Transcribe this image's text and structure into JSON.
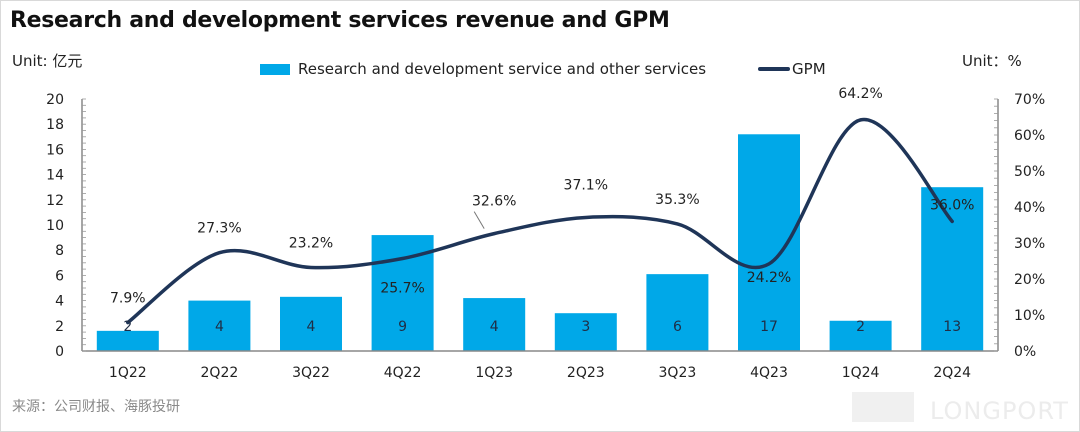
{
  "title": "Research and development services revenue and GPM",
  "unit_left": "Unit: 亿元",
  "unit_right": "Unit：%",
  "legend": {
    "bar": "Research and development service and other services",
    "line": "GPM"
  },
  "source": "来源：公司财报、海豚投研",
  "watermark": "LONGPORT",
  "colors": {
    "bar": "#00a8e8",
    "line": "#1f3558"
  },
  "chart_data": {
    "type": "bar",
    "title": "Research and development services revenue and GPM",
    "categories": [
      "1Q22",
      "2Q22",
      "3Q22",
      "4Q22",
      "1Q23",
      "2Q23",
      "3Q23",
      "4Q23",
      "1Q24",
      "2Q24"
    ],
    "series": [
      {
        "name": "Research and development service and other services",
        "type": "bar",
        "axis": "left",
        "values": [
          1.6,
          4.0,
          4.3,
          9.2,
          4.2,
          3.0,
          6.1,
          17.2,
          2.4,
          13.0
        ],
        "labels": [
          "2",
          "4",
          "4",
          "9",
          "4",
          "3",
          "6",
          "17",
          "2",
          "13"
        ]
      },
      {
        "name": "GPM",
        "type": "line",
        "axis": "right",
        "values": [
          7.9,
          27.3,
          23.2,
          25.7,
          32.6,
          37.1,
          35.3,
          24.2,
          64.2,
          36.0
        ],
        "labels": [
          "7.9%",
          "27.3%",
          "23.2%",
          "25.7%",
          "32.6%",
          "37.1%",
          "35.3%",
          "24.2%",
          "64.2%",
          "36.0%"
        ]
      }
    ],
    "y_left": {
      "label": "Unit: 亿元",
      "ylim": [
        0,
        20
      ],
      "ticks": [
        "0",
        "2",
        "4",
        "6",
        "8",
        "10",
        "12",
        "14",
        "16",
        "18",
        "20"
      ]
    },
    "y_right": {
      "label": "Unit：%",
      "ylim": [
        0,
        70
      ],
      "ticks": [
        "0%",
        "10%",
        "20%",
        "30%",
        "40%",
        "50%",
        "60%",
        "70%"
      ]
    },
    "grid": false,
    "legend_position": "top"
  }
}
